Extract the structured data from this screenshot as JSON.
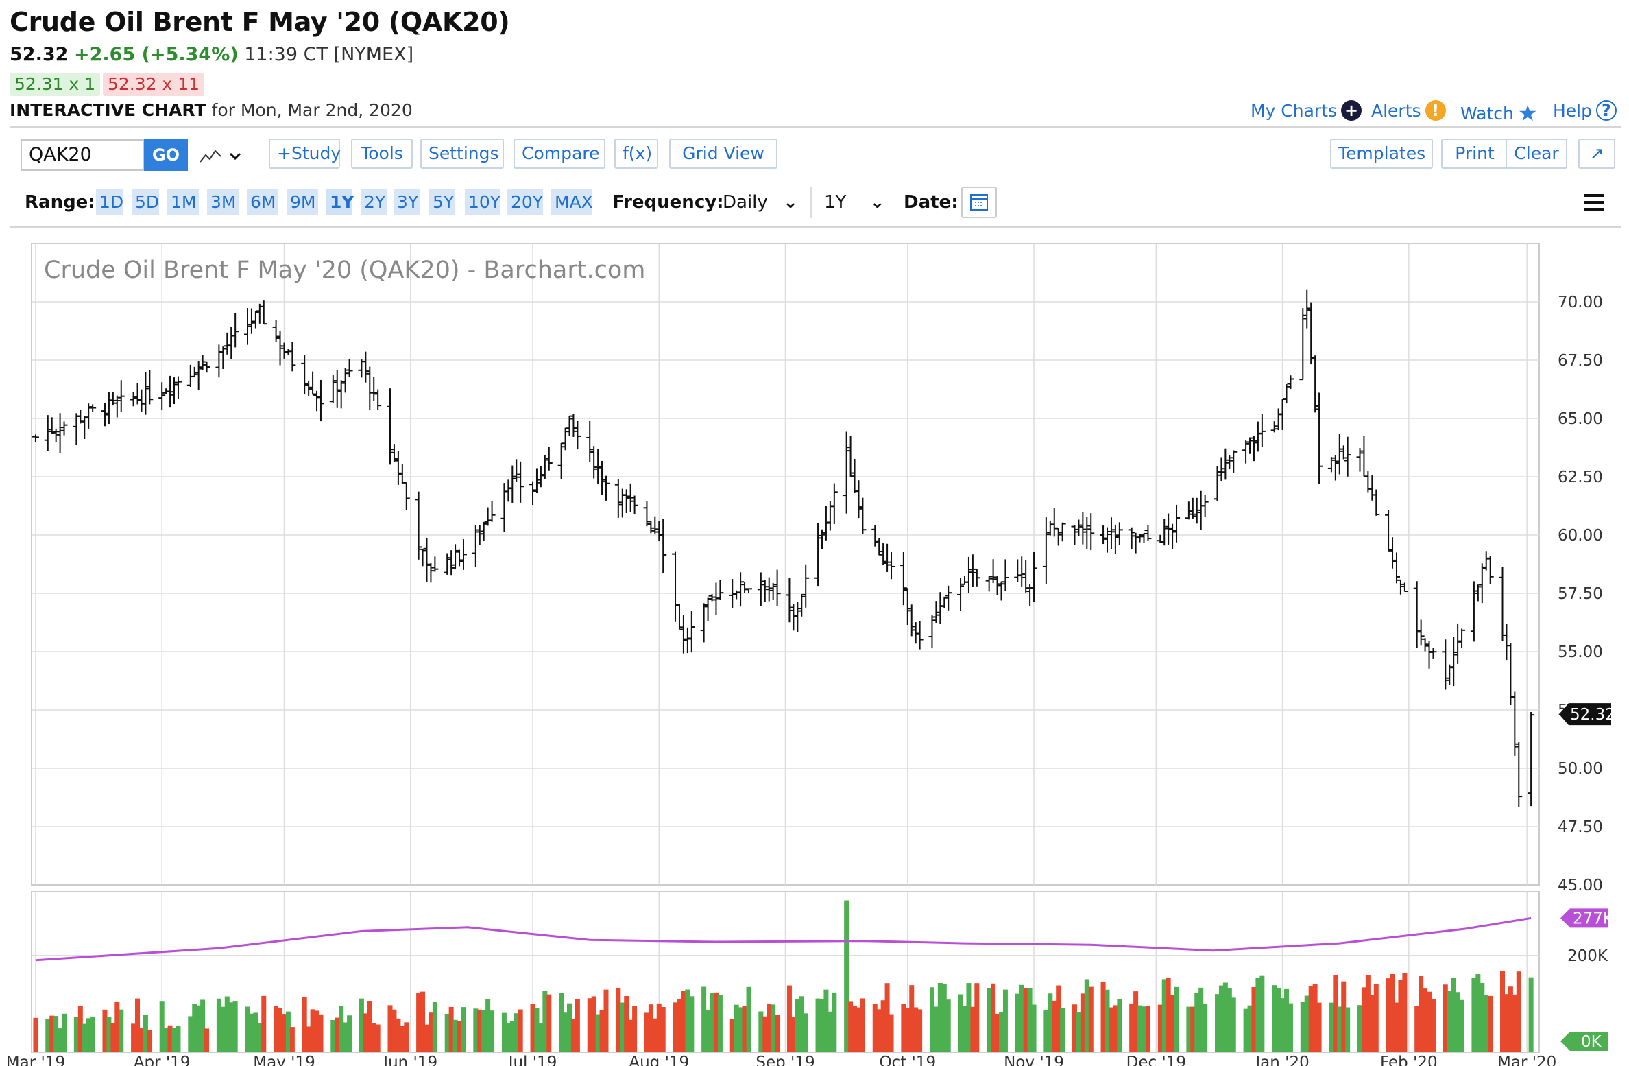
{
  "header": {
    "title": "Crude Oil Brent F May '20 (QAK20)",
    "last": "52.32",
    "change": "+2.65 (+5.34%)",
    "time": "11:39 CT [NYMEX]",
    "bid": "52.31 x 1",
    "ask": "52.32 x 11",
    "chart_label": "INTERACTIVE CHART",
    "chart_date": "for Mon, Mar 2nd, 2020"
  },
  "top_links": {
    "my_charts": "My Charts",
    "alerts": "Alerts",
    "watch": "Watch",
    "help": "Help"
  },
  "toolbar": {
    "symbol_value": "QAK20",
    "go": "GO",
    "study": "+Study",
    "tools": "Tools",
    "settings": "Settings",
    "compare": "Compare",
    "fx": "f(x)",
    "grid_view": "Grid View",
    "templates": "Templates",
    "print": "Print",
    "clear": "Clear"
  },
  "range_bar": {
    "range_label": "Range:",
    "ranges": [
      "1D",
      "5D",
      "1M",
      "3M",
      "6M",
      "9M",
      "1Y",
      "2Y",
      "3Y",
      "5Y",
      "10Y",
      "20Y",
      "MAX"
    ],
    "selected_range": "1Y",
    "frequency_label": "Frequency:",
    "frequency_value": "Daily",
    "period_value": "1Y",
    "date_label": "Date:"
  },
  "colors": {
    "accent": "#1f6fd1",
    "up_volume": "#4caf50",
    "down_volume": "#e8482b",
    "volume_avg": "#b84fd6",
    "price_bar": "#111111"
  },
  "chart_data": {
    "type": "ohlc-bar",
    "title": "Crude Oil Brent F May '20 (QAK20) - Barchart.com",
    "x_tick_labels": [
      "Mar '19",
      "Apr '19",
      "May '19",
      "Jun '19",
      "Jul '19",
      "Aug '19",
      "Sep '19",
      "Oct '19",
      "Nov '19",
      "Dec '19",
      "Jan '20",
      "Feb '20",
      "Mar '20"
    ],
    "y_tick_labels": [
      "70.00",
      "67.50",
      "65.00",
      "62.50",
      "60.00",
      "57.50",
      "55.00",
      "52.50",
      "50.00",
      "47.50",
      "45.00"
    ],
    "ylim": [
      45.0,
      70.0
    ],
    "last_price_label": "52.32",
    "price_series": [
      {
        "date": "2019-03-01",
        "close": 64.2
      },
      {
        "date": "2019-03-15",
        "close": 65.3
      },
      {
        "date": "2019-04-01",
        "close": 66.2
      },
      {
        "date": "2019-04-15",
        "close": 67.8
      },
      {
        "date": "2019-04-25",
        "close": 69.5
      },
      {
        "date": "2019-05-01",
        "close": 67.9
      },
      {
        "date": "2019-05-10",
        "close": 65.8
      },
      {
        "date": "2019-05-20",
        "close": 67.4
      },
      {
        "date": "2019-05-30",
        "close": 62.2
      },
      {
        "date": "2019-06-05",
        "close": 58.5
      },
      {
        "date": "2019-06-15",
        "close": 59.3
      },
      {
        "date": "2019-06-25",
        "close": 62.3
      },
      {
        "date": "2019-07-01",
        "close": 62.0
      },
      {
        "date": "2019-07-10",
        "close": 64.8
      },
      {
        "date": "2019-07-20",
        "close": 62.0
      },
      {
        "date": "2019-08-01",
        "close": 60.2
      },
      {
        "date": "2019-08-07",
        "close": 55.4
      },
      {
        "date": "2019-08-15",
        "close": 57.5
      },
      {
        "date": "2019-08-27",
        "close": 58.0
      },
      {
        "date": "2019-09-03",
        "close": 56.4
      },
      {
        "date": "2019-09-10",
        "close": 60.2
      },
      {
        "date": "2019-09-16",
        "close": 63.5
      },
      {
        "date": "2019-09-20",
        "close": 60.5
      },
      {
        "date": "2019-09-30",
        "close": 57.5
      },
      {
        "date": "2019-10-03",
        "close": 55.5
      },
      {
        "date": "2019-10-15",
        "close": 58.2
      },
      {
        "date": "2019-10-31",
        "close": 58.0
      },
      {
        "date": "2019-11-05",
        "close": 60.3
      },
      {
        "date": "2019-11-20",
        "close": 60.0
      },
      {
        "date": "2019-12-01",
        "close": 59.8
      },
      {
        "date": "2019-12-10",
        "close": 61.0
      },
      {
        "date": "2019-12-20",
        "close": 63.4
      },
      {
        "date": "2019-12-31",
        "close": 65.0
      },
      {
        "date": "2020-01-03",
        "close": 66.8
      },
      {
        "date": "2020-01-07",
        "close": 70.0
      },
      {
        "date": "2020-01-10",
        "close": 63.2
      },
      {
        "date": "2020-01-20",
        "close": 63.4
      },
      {
        "date": "2020-01-27",
        "close": 59.2
      },
      {
        "date": "2020-02-03",
        "close": 56.0
      },
      {
        "date": "2020-02-10",
        "close": 54.0
      },
      {
        "date": "2020-02-20",
        "close": 59.0
      },
      {
        "date": "2020-02-25",
        "close": 55.0
      },
      {
        "date": "2020-02-28",
        "close": 49.0
      },
      {
        "date": "2020-03-02",
        "close": 52.32
      }
    ],
    "volume": {
      "y_tick_labels": [
        "277K",
        "200K",
        "0K"
      ],
      "ylim": [
        0,
        320000
      ],
      "average_last": 277000,
      "average_series": [
        {
          "date": "2019-03-01",
          "value": 190000
        },
        {
          "date": "2019-04-15",
          "value": 215000
        },
        {
          "date": "2019-05-20",
          "value": 250000
        },
        {
          "date": "2019-06-15",
          "value": 258000
        },
        {
          "date": "2019-07-15",
          "value": 232000
        },
        {
          "date": "2019-08-15",
          "value": 228000
        },
        {
          "date": "2019-09-20",
          "value": 230000
        },
        {
          "date": "2019-10-15",
          "value": 225000
        },
        {
          "date": "2019-11-15",
          "value": 222000
        },
        {
          "date": "2019-12-15",
          "value": 210000
        },
        {
          "date": "2020-01-15",
          "value": 225000
        },
        {
          "date": "2020-02-15",
          "value": 255000
        },
        {
          "date": "2020-03-02",
          "value": 277000
        }
      ],
      "peak_date": "2019-09-16",
      "peak_value": 320000
    }
  }
}
